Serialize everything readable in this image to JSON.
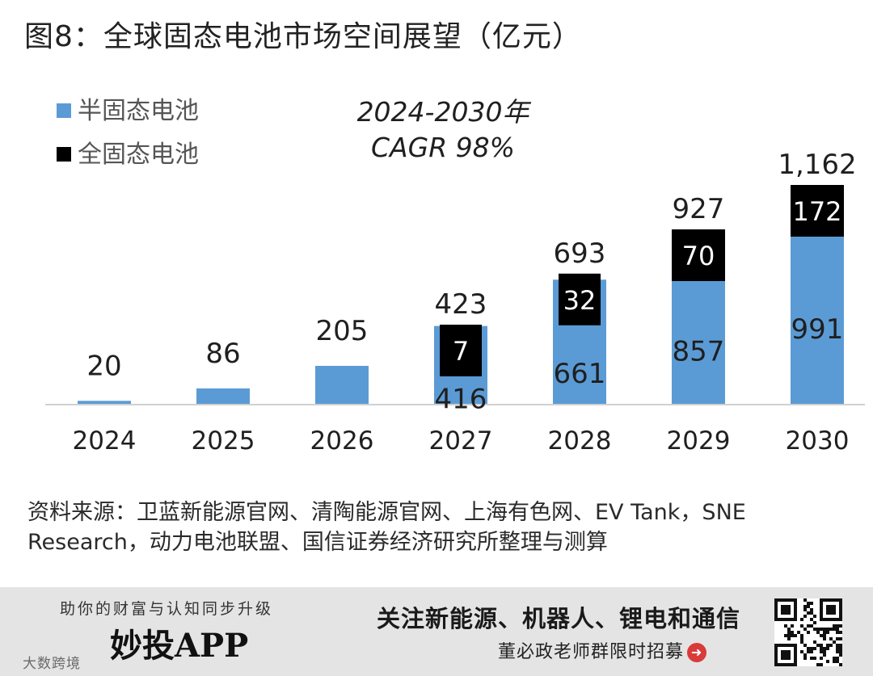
{
  "title": "图8：全球固态电池市场空间展望（亿元）",
  "chart_data": {
    "type": "bar",
    "stacked": true,
    "categories": [
      "2024",
      "2025",
      "2026",
      "2027",
      "2028",
      "2029",
      "2030"
    ],
    "series": [
      {
        "name": "半固态电池",
        "color": "#5b9bd5",
        "values": [
          20,
          86,
          205,
          416,
          661,
          857,
          991
        ],
        "labels": [
          null,
          null,
          null,
          "416",
          "661",
          "857",
          "991"
        ]
      },
      {
        "name": "全固态电池",
        "color": "#000000",
        "values": [
          0,
          0,
          0,
          7,
          32,
          70,
          172
        ],
        "labels": [
          null,
          null,
          null,
          "7",
          "32",
          "70",
          "172"
        ]
      }
    ],
    "totals": [
      20,
      86,
      205,
      423,
      693,
      927,
      1162
    ],
    "total_labels": [
      "20",
      "86",
      "205",
      "423",
      "693",
      "927",
      "1,162"
    ],
    "annotation": [
      "2024-2030年",
      "CAGR 98%"
    ],
    "ylim": [
      0,
      1350
    ],
    "legend_position": "top-left",
    "xlabel": "",
    "ylabel": ""
  },
  "source": "资料来源：卫蓝新能源官网、清陶能源官网、上海有色网、EV Tank，SNE Research，动力电池联盟、国信证券经济研究所整理与测算",
  "footer": {
    "tagline": "助你的财富与认知同步升级",
    "app_name": "妙投APP",
    "watermark": "大数跨境",
    "headline": "关注新能源、机器人、锂电和通信",
    "subline": "董必政老师群限时招募",
    "arrow_icon": "arrow-right-circle-icon"
  }
}
